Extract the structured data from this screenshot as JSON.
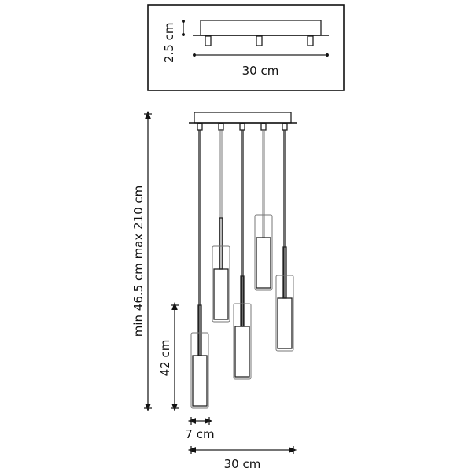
{
  "detail_box": {
    "height_label": "2.5 cm",
    "width_label": "30 cm"
  },
  "dimensions": {
    "total_height_label": "min 46.5 cm max 210 cm",
    "shade_height_label": "42 cm",
    "shade_width_label": "7 cm",
    "total_width_label": "30 cm"
  },
  "colors": {
    "line": "#222222",
    "background": "#ffffff"
  }
}
